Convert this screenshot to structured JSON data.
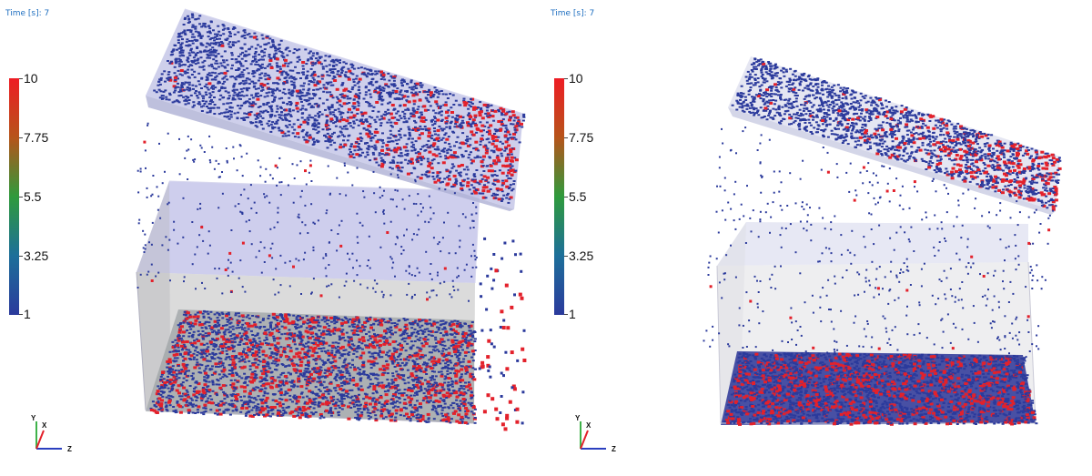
{
  "panels": [
    {
      "time_label": "Time [s]: 7",
      "legend": {
        "ticks": [
          "10",
          "7.75",
          "5.5",
          "3.25",
          "1"
        ]
      },
      "axes": {
        "y": "Y",
        "x": "X",
        "z": "Z"
      }
    },
    {
      "time_label": "Time [s]: 7",
      "legend": {
        "ticks": [
          "10",
          "7.75",
          "5.5",
          "3.25",
          "1"
        ]
      },
      "axes": {
        "y": "Y",
        "x": "X",
        "z": "Z"
      }
    }
  ],
  "colors": {
    "particle_low": "#2b3a9c",
    "particle_high": "#e3212b",
    "container": "#c7c9ea",
    "floor": "#2a3496"
  }
}
